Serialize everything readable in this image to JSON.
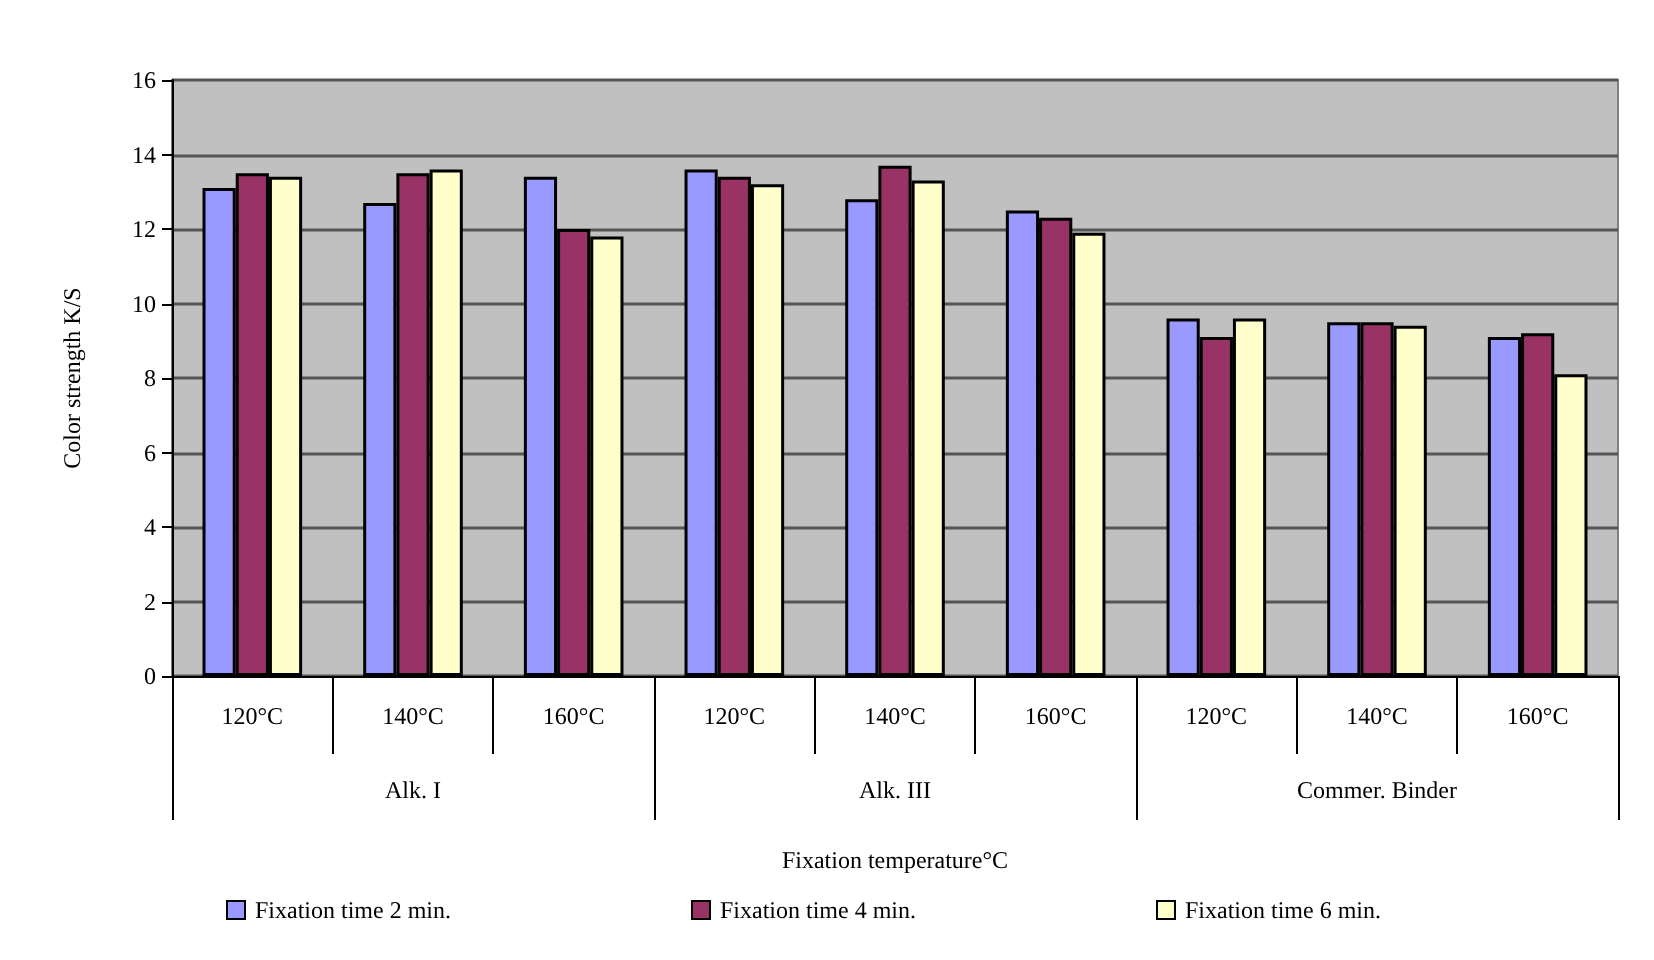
{
  "chart_data": {
    "type": "bar",
    "ylabel": "Color strength K/S",
    "xlabel": "Fixation temperature°C",
    "categories": [
      "120°C",
      "140°C",
      "160°C",
      "120°C",
      "140°C",
      "160°C",
      "120°C",
      "140°C",
      "160°C"
    ],
    "annotations": [
      "Alk. I",
      "Alk. III",
      "Commer. Binder"
    ],
    "series": [
      {
        "name": "Fixation time 2 min.",
        "color": "#9999ff",
        "values": [
          13.1,
          12.7,
          13.4,
          13.6,
          12.8,
          12.5,
          9.6,
          9.5,
          9.1
        ]
      },
      {
        "name": "Fixation time 4 min.",
        "color": "#993366",
        "values": [
          13.5,
          13.5,
          12.0,
          13.4,
          13.7,
          12.3,
          9.1,
          9.5,
          9.2
        ]
      },
      {
        "name": "Fixation time 6 min.",
        "color": "#ffffcc",
        "values": [
          13.4,
          13.6,
          11.8,
          13.2,
          13.3,
          11.9,
          9.6,
          9.4,
          8.1
        ]
      }
    ],
    "ylim": [
      0,
      16
    ],
    "yticks": [
      0,
      2,
      4,
      6,
      8,
      10,
      12,
      14,
      16
    ],
    "grid": "y",
    "legend": "bottom"
  }
}
